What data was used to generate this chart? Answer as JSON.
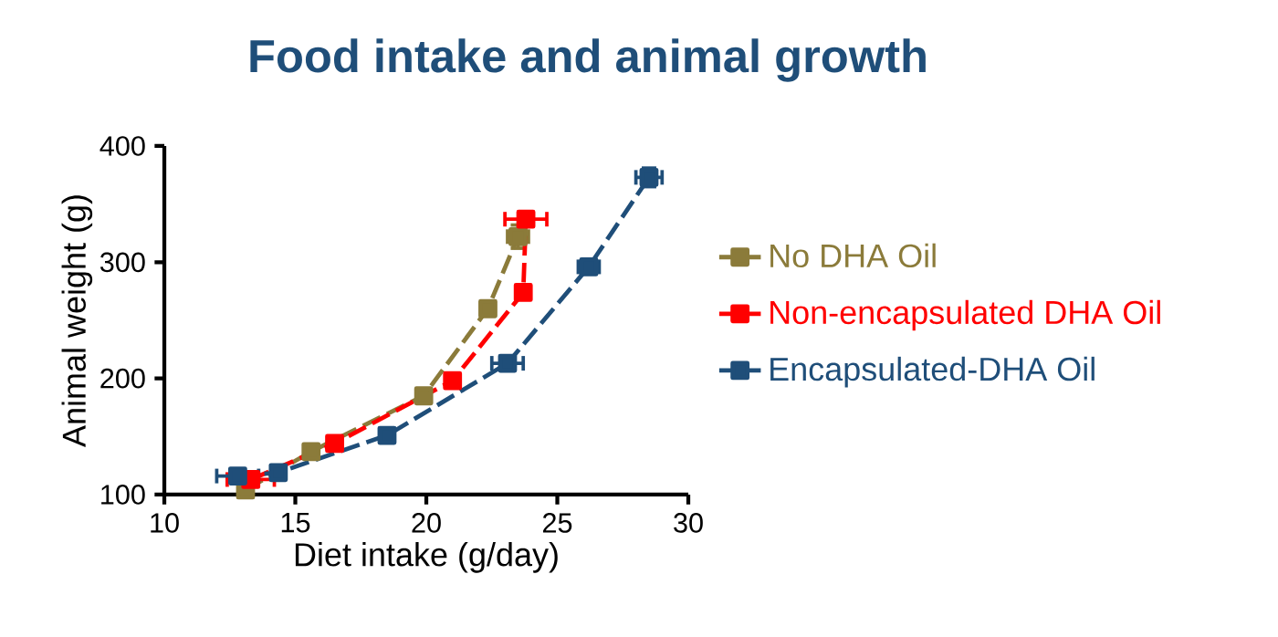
{
  "chart_data": {
    "type": "line",
    "title": "Food intake and animal growth",
    "xlabel": "Diet intake (g/day)",
    "ylabel": "Animal weight (g)",
    "xlim": [
      10,
      30
    ],
    "xticks": [
      10,
      15,
      20,
      25,
      30
    ],
    "ylim": [
      100,
      400
    ],
    "yticks": [
      100,
      200,
      300,
      400
    ],
    "grid": false,
    "legend": "right",
    "marker": "square",
    "line_style": "dashed",
    "series": [
      {
        "name": "No DHA Oil",
        "color": "#8b7b3a",
        "x": [
          13.1,
          15.6,
          19.9,
          22.35,
          23.5
        ],
        "values": [
          104,
          137,
          185,
          260,
          322
        ],
        "errors": [
          null,
          null,
          null,
          6,
          10
        ],
        "xerrors": [
          null,
          null,
          null,
          null,
          0.4
        ]
      },
      {
        "name": "Non-encapsulated DHA Oil",
        "color": "#ff0000",
        "x": [
          13.3,
          16.5,
          21.0,
          23.7,
          23.8
        ],
        "values": [
          113,
          144,
          198,
          274,
          337
        ],
        "errors": [
          null,
          null,
          null,
          null,
          6
        ],
        "xerrors": [
          0.9,
          null,
          null,
          null,
          0.8
        ]
      },
      {
        "name": "Encapsulated-DHA Oil",
        "color": "#1f4e79",
        "x": [
          12.8,
          14.35,
          18.5,
          23.1,
          26.2,
          28.5
        ],
        "values": [
          116,
          119,
          151,
          213,
          296,
          373
        ],
        "errors": [
          null,
          null,
          null,
          null,
          6,
          8
        ],
        "xerrors": [
          0.8,
          null,
          null,
          0.6,
          0.4,
          0.5
        ]
      }
    ]
  }
}
